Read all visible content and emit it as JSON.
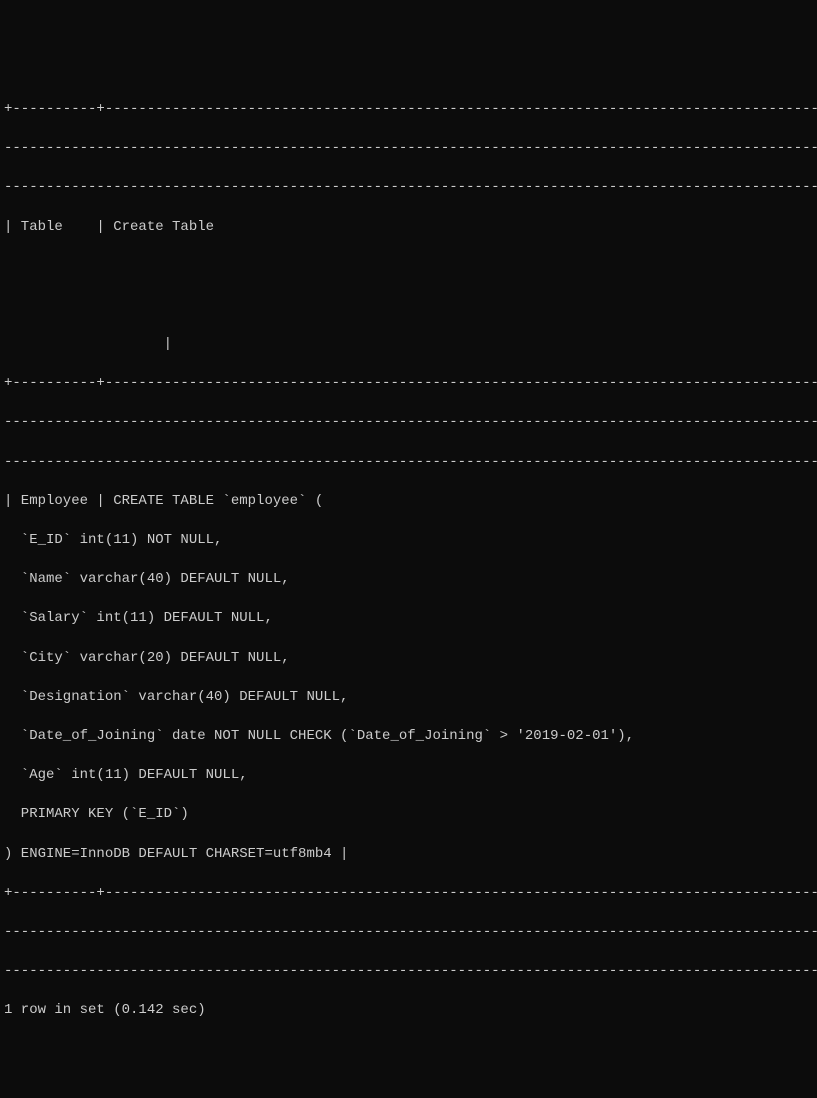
{
  "separator_top": "+----------+------------------------------------------------------------------------------------------------------------------------------------------------------------------------------------------------------------------------------------------------------------------------------------------------------+",
  "separator_dashes": "----------------------------------------------------------------------------------------------------------+",
  "header_line": "| Table    | Create Table",
  "header_blank_pipe": "                   |",
  "body_lines": [
    "| Employee | CREATE TABLE `employee` (",
    "  `E_ID` int(11) NOT NULL,",
    "  `Name` varchar(40) DEFAULT NULL,",
    "  `Salary` int(11) DEFAULT NULL,",
    "  `City` varchar(20) DEFAULT NULL,",
    "  `Designation` varchar(40) DEFAULT NULL,",
    "  `Date_of_Joining` date NOT NULL CHECK (`Date_of_Joining` > '2019-02-01'),",
    "  `Age` int(11) DEFAULT NULL,",
    "  PRIMARY KEY (`E_ID`)",
    ") ENGINE=InnoDB DEFAULT CHARSET=utf8mb4 |"
  ],
  "footer_line": "1 row in set (0.142 sec)",
  "colors": {
    "background": "#0c0c0c",
    "text": "#cccccc"
  },
  "font": {
    "family": "Consolas, Courier New, monospace",
    "size": 14
  }
}
